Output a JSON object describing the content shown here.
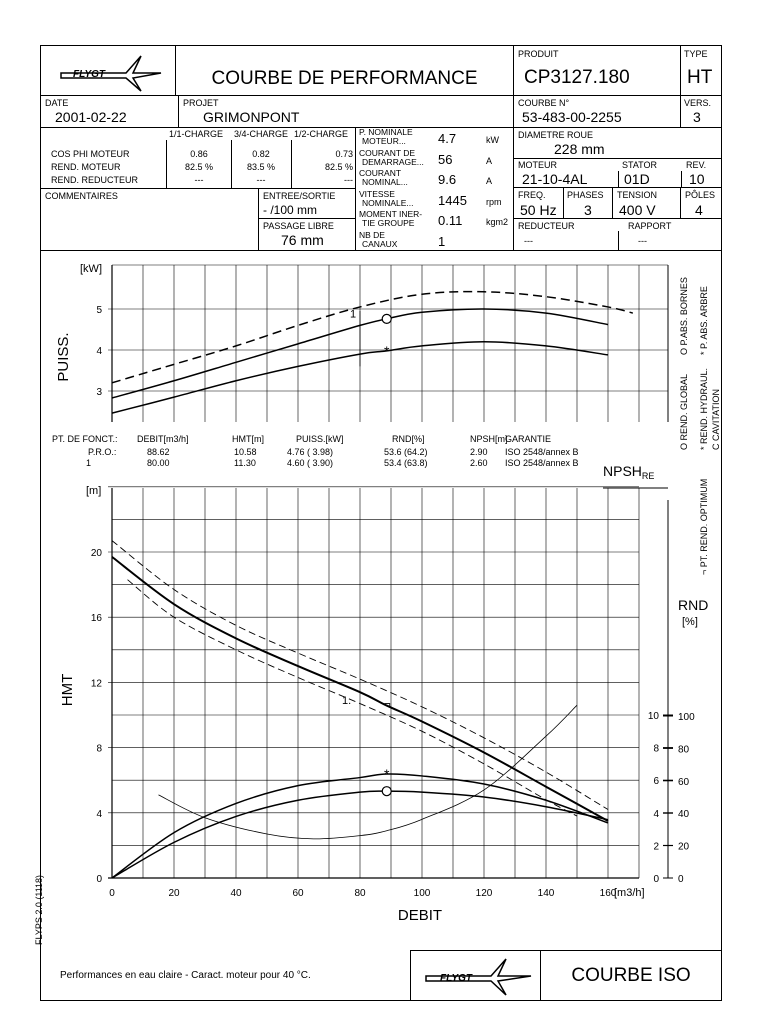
{
  "header": {
    "logo": "FLYGT",
    "title": "COURBE DE PERFORMANCE",
    "produit_label": "PRODUIT",
    "produit": "CP3127.180",
    "type_label": "TYPE",
    "type": "HT",
    "date_label": "DATE",
    "date": "2001-02-22",
    "projet_label": "PROJET",
    "projet": "GRIMONPONT",
    "courbe_label": "COURBE N°",
    "courbe": "53-483-00-2255",
    "vers_label": "VERS.",
    "vers": "3"
  },
  "charge": {
    "cols": [
      "1/1-CHARGE",
      "3/4-CHARGE",
      "1/2-CHARGE"
    ],
    "rows": [
      {
        "label": "COS PHI MOTEUR",
        "v": [
          "0.86",
          "0.82",
          "0.73"
        ]
      },
      {
        "label": "REND. MOTEUR",
        "v": [
          "82.5 %",
          "83.5 %",
          "82.5 %"
        ]
      },
      {
        "label": "REND. REDUCTEUR",
        "v": [
          "---",
          "---",
          "---"
        ]
      }
    ]
  },
  "comments_label": "COMMENTAIRES",
  "entree_label": "ENTREE/SORTIE",
  "entree": "- /100 mm",
  "passage_label": "PASSAGE LIBRE",
  "passage": "76 mm",
  "params": [
    {
      "l1": "P. NOMINALE",
      "l2": "MOTEUR...",
      "value": "4.7",
      "unit": "kW"
    },
    {
      "l1": "COURANT DE",
      "l2": "DEMARRAGE...",
      "value": "56",
      "unit": "A"
    },
    {
      "l1": "COURANT",
      "l2": "NOMINAL...",
      "value": "9.6",
      "unit": "A"
    },
    {
      "l1": "VITESSE",
      "l2": "NOMINALE...",
      "value": "1445",
      "unit": "rpm"
    },
    {
      "l1": "MOMENT INER-",
      "l2": "TIE GROUPE",
      "value": "0.11",
      "unit": "kgm2"
    },
    {
      "l1": "NB DE",
      "l2": "CANAUX",
      "value": "1",
      "unit": ""
    }
  ],
  "motor": {
    "diametre_label": "DIAMETRE ROUE",
    "diametre": "228 mm",
    "moteur_label": "MOTEUR",
    "moteur": "21-10-4AL",
    "stator_label": "STATOR",
    "stator": "01D",
    "rev_label": "REV.",
    "rev": "10",
    "freq_label": "FREQ.",
    "freq": "50 Hz",
    "phases_label": "PHASES",
    "phases": "3",
    "tension_label": "TENSION",
    "tension": "400 V",
    "poles_label": "PÔLES",
    "poles": "4",
    "reducteur_label": "REDUCTEUR",
    "reducteur": "---",
    "rapport_label": "RAPPORT",
    "rapport": "---"
  },
  "operating": {
    "headers": [
      "PT. DE FONCT.:",
      "DEBIT[m3/h]",
      "HMT[m]",
      "PUISS.[kW]",
      "RND[%]",
      "NPSH[m]",
      "GARANTIE"
    ],
    "rows": [
      [
        "P.R.O.:",
        "88.62",
        "10.58",
        "4.76 ( 3.98)",
        "53.6 (64.2)",
        "2.90",
        "ISO 2548/annex B"
      ],
      [
        "1",
        "80.00",
        "11.30",
        "4.60 ( 3.90)",
        "53.4 (63.8)",
        "2.60",
        "ISO 2548/annex B"
      ]
    ]
  },
  "legend": {
    "power": [
      "O  P.ABS. BORNES",
      "*  P. ABS. ARBRE"
    ],
    "eff": [
      "O  REND. GLOBAL",
      "*  REND. HYDRAUL.",
      "C  CAVITATION"
    ],
    "opt": "¬  PT. REND. OPTIMUM"
  },
  "chart_data": [
    {
      "type": "line",
      "ylabel": "PUISS.",
      "yunit": "[kW]",
      "xlim": [
        0,
        170
      ],
      "ylim": [
        2.25,
        6.1
      ],
      "yticks": [
        "3",
        "4",
        "5"
      ],
      "grid": true,
      "series": [
        {
          "marker": "none",
          "style": "dashed",
          "x": [
            0,
            20,
            40,
            60,
            80,
            100,
            120,
            140,
            160,
            168
          ],
          "y": [
            3.2,
            3.65,
            4.1,
            4.6,
            5.05,
            5.36,
            5.42,
            5.3,
            5.05,
            4.9
          ]
        },
        {
          "marker": "O",
          "style": "solid",
          "x": [
            0,
            20,
            40,
            60,
            80,
            88.62,
            100,
            120,
            140,
            160
          ],
          "y": [
            2.83,
            3.25,
            3.7,
            4.15,
            4.6,
            4.76,
            4.92,
            5.0,
            4.9,
            4.62
          ]
        },
        {
          "marker": "*",
          "style": "solid",
          "x": [
            0,
            20,
            40,
            60,
            80,
            88.62,
            100,
            120,
            140,
            160
          ],
          "y": [
            2.46,
            2.85,
            3.25,
            3.6,
            3.9,
            3.98,
            4.1,
            4.2,
            4.1,
            3.88
          ]
        }
      ],
      "points": [
        {
          "label": "O",
          "x": 88.62,
          "y": 4.76
        },
        {
          "label": "*",
          "x": 88.62,
          "y": 3.98
        },
        {
          "label": "1",
          "x": 80,
          "y": 4.6
        }
      ]
    },
    {
      "type": "line",
      "xlabel": "DEBIT",
      "xunit": "[m3/h]",
      "ylabel": "HMT",
      "yunit": "[m]",
      "xlim": [
        0,
        170
      ],
      "ylim": [
        0,
        24
      ],
      "xticks": [
        "0",
        "20",
        "40",
        "60",
        "80",
        "100",
        "120",
        "140",
        "160"
      ],
      "yticks": [
        "0",
        "4",
        "8",
        "12",
        "16",
        "20"
      ],
      "y2label": "NPSH",
      "y2sub": "RE",
      "y2ticks": [
        "0",
        "2",
        "4",
        "6",
        "8",
        "10"
      ],
      "y3label": "RND",
      "y3unit": "[%]",
      "y3ticks": [
        "0",
        "20",
        "40",
        "60",
        "80",
        "100"
      ],
      "grid": true,
      "series": [
        {
          "name": "HMT",
          "style": "thick",
          "x": [
            0,
            20,
            40,
            60,
            80,
            88.62,
            100,
            120,
            140,
            160
          ],
          "y": [
            19.7,
            16.8,
            14.7,
            13.0,
            11.4,
            10.58,
            9.6,
            7.7,
            5.6,
            3.5
          ]
        },
        {
          "name": "HMT tolerance",
          "style": "dashed",
          "x": [
            0,
            20,
            40,
            60,
            80,
            100,
            120,
            140,
            160
          ],
          "y": [
            20.7,
            17.7,
            15.5,
            13.8,
            12.2,
            10.5,
            8.6,
            6.5,
            4.2
          ]
        },
        {
          "name": "HMT tolerance",
          "style": "dashed",
          "x": [
            5,
            20,
            40,
            60,
            80,
            100,
            120,
            140,
            150
          ],
          "y": [
            18.3,
            16.0,
            14.0,
            12.3,
            10.7,
            9.0,
            7.0,
            4.8,
            3.8
          ]
        },
        {
          "name": "NPSH",
          "axis": "npsh",
          "style": "thin",
          "x": [
            15,
            30,
            50,
            65,
            80,
            88.62,
            100,
            120,
            140,
            150
          ],
          "y": [
            5.1,
            3.7,
            2.7,
            2.4,
            2.6,
            2.9,
            3.6,
            5.4,
            8.7,
            10.6
          ]
        },
        {
          "name": "RND hydraul",
          "axis": "rnd",
          "style": "solid",
          "x": [
            0,
            20,
            40,
            60,
            80,
            88.62,
            100,
            120,
            140,
            160
          ],
          "y": [
            0,
            28,
            46,
            57,
            62,
            64.2,
            63,
            58,
            48,
            34
          ]
        },
        {
          "name": "RND global",
          "axis": "rnd",
          "style": "solid",
          "x": [
            0,
            20,
            40,
            60,
            80,
            88.62,
            100,
            120,
            140,
            160
          ],
          "y": [
            0,
            22,
            38,
            48,
            53,
            53.6,
            53,
            50,
            44,
            36
          ]
        }
      ],
      "points": [
        {
          "label": "*",
          "axis": "rnd",
          "x": 88.62,
          "y": 64.2
        },
        {
          "label": "O",
          "axis": "rnd",
          "x": 88.62,
          "y": 53.6
        },
        {
          "label": "1.",
          "axis": "hmt",
          "x": 80,
          "y": 11.3
        },
        {
          "label": "¬",
          "axis": "hmt",
          "x": 88.62,
          "y": 10.58
        }
      ]
    }
  ],
  "footer": {
    "note": "Performances en eau claire - Caract. moteur pour 40 °C.",
    "logo": "FLYGT",
    "iso": "COURBE ISO",
    "version": "FLYPS 2.0 (1118)"
  }
}
